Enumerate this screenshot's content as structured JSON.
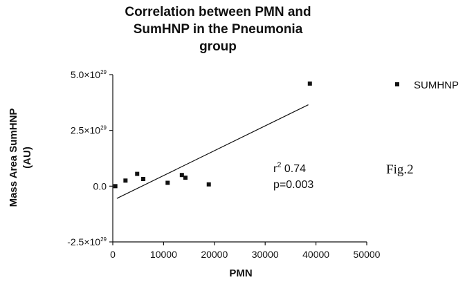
{
  "chart_data": {
    "type": "scatter",
    "title_lines": [
      "Correlation between PMN and",
      "SumHNP in the Pneumonia",
      "group"
    ],
    "xlabel": "PMN",
    "ylabel_lines": [
      "Mass Area SumHNP",
      "(AU)"
    ],
    "xlim": [
      0,
      50000
    ],
    "ylim": [
      -2.5e+29,
      5e+29
    ],
    "x_ticks": [
      0,
      10000,
      20000,
      30000,
      40000,
      50000
    ],
    "x_tick_labels": [
      "0",
      "10000",
      "20000",
      "30000",
      "40000",
      "50000"
    ],
    "y_ticks": [
      -2.5e+29,
      0,
      2.5e+29,
      5e+29
    ],
    "y_tick_labels": [
      {
        "base": "-2.5×10",
        "exp": "29"
      },
      {
        "base": "0.0",
        "exp": ""
      },
      {
        "base": "2.5×10",
        "exp": "29"
      },
      {
        "base": "5.0×10",
        "exp": "29"
      }
    ],
    "series": [
      {
        "name": "SUMHNP",
        "marker": "square",
        "color": "#111111",
        "points": [
          {
            "x": 500,
            "y": 0.0
          },
          {
            "x": 2500,
            "y": 2.5e+28
          },
          {
            "x": 4800,
            "y": 5.5e+28
          },
          {
            "x": 6000,
            "y": 3.2e+28
          },
          {
            "x": 10800,
            "y": 1.5e+28
          },
          {
            "x": 13600,
            "y": 5e+28
          },
          {
            "x": 14300,
            "y": 3.8e+28
          },
          {
            "x": 18900,
            "y": 8e+27
          },
          {
            "x": 38800,
            "y": 4.6e+29
          }
        ]
      }
    ],
    "regression_line": {
      "x1": 800,
      "y1": -5.5e+28,
      "x2": 38500,
      "y2": 3.65e+29
    },
    "annotation": {
      "r2_label": "r",
      "r2_exp": "2",
      "r2_value": " 0.74",
      "p_text": "p=0.003"
    },
    "legend_position": "top-right",
    "grid": false
  },
  "figure_label": "Fig.2"
}
